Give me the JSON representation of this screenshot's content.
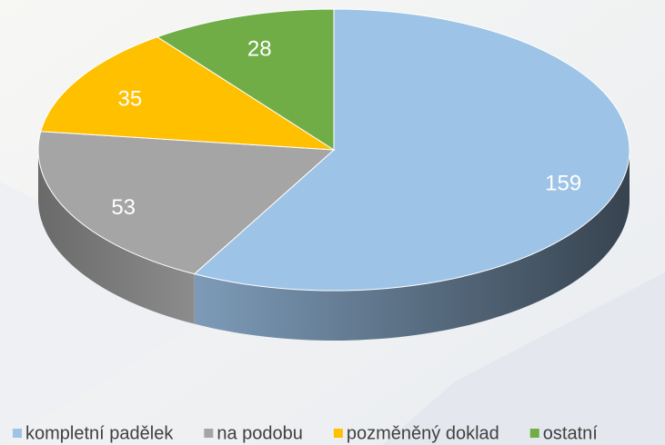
{
  "chart_data": {
    "type": "pie",
    "categories": [
      "kompletní padělek",
      "na podobu",
      "pozměněný doklad",
      "ostatní"
    ],
    "values": [
      159,
      53,
      35,
      28
    ],
    "colors": [
      "#9dc3e6",
      "#a5a5a5",
      "#ffc000",
      "#70ad47"
    ],
    "legend": "bottom"
  }
}
